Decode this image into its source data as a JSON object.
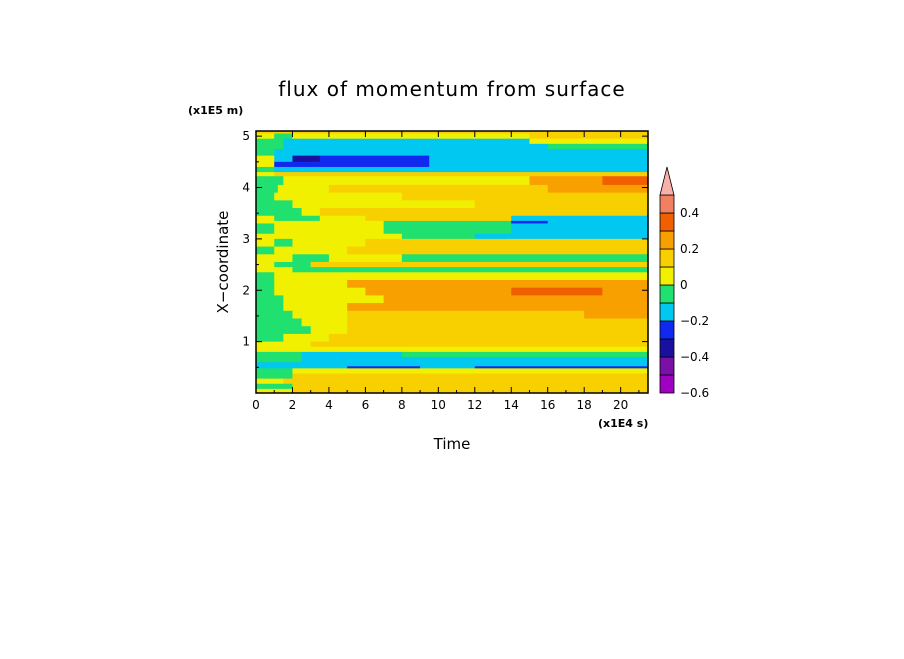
{
  "chart_data": {
    "type": "heatmap",
    "title": "flux of momentum from surface",
    "xlabel": "Time",
    "ylabel": "X−coordinate",
    "x_unit": "(x1E4 s)",
    "y_unit": "(x1E5 m)",
    "xlim": [
      0,
      21.5
    ],
    "ylim": [
      0,
      5.1
    ],
    "x_ticks": [
      0,
      2,
      4,
      6,
      8,
      10,
      12,
      14,
      16,
      18,
      20
    ],
    "x_tick_labels": [
      "0",
      "2",
      "4",
      "6",
      "8",
      "10",
      "12",
      "14",
      "16",
      "18",
      "20"
    ],
    "y_ticks": [
      1,
      2,
      3,
      4,
      5
    ],
    "y_tick_labels": [
      "1",
      "2",
      "3",
      "4",
      "5"
    ],
    "colorbar": {
      "levels": [
        -0.6,
        -0.5,
        -0.4,
        -0.3,
        -0.2,
        -0.1,
        0,
        0.1,
        0.2,
        0.3,
        0.4,
        0.5
      ],
      "colors": [
        "#a000c0",
        "#7a10a8",
        "#1a10a0",
        "#1028f0",
        "#00c8f0",
        "#20e070",
        "#f0f000",
        "#f8d000",
        "#f8a000",
        "#f06000",
        "#f08060",
        "#f8b0a8"
      ],
      "tick_values": [
        0.4,
        0.2,
        0,
        -0.2,
        -0.4,
        -0.6
      ],
      "tick_labels": [
        "0.4",
        "0.2",
        "0",
        "−0.2",
        "−0.4",
        "−0.6"
      ],
      "extend": "max"
    },
    "bands": [
      {
        "y0": 5.05,
        "y1": 5.1,
        "segs": [
          [
            0,
            1.2,
            0.1
          ],
          [
            1.2,
            21.5,
            0.15
          ]
        ]
      },
      {
        "y0": 4.95,
        "y1": 5.05,
        "segs": [
          [
            0,
            1,
            0.05
          ],
          [
            1,
            2,
            -0.05
          ],
          [
            2,
            15,
            0.05
          ],
          [
            15,
            21.5,
            0.15
          ]
        ]
      },
      {
        "y0": 4.85,
        "y1": 4.95,
        "segs": [
          [
            0,
            1.5,
            -0.05
          ],
          [
            1.5,
            15,
            -0.15
          ],
          [
            15,
            21.5,
            0.05
          ]
        ]
      },
      {
        "y0": 4.75,
        "y1": 4.85,
        "segs": [
          [
            0,
            1.5,
            -0.05
          ],
          [
            1.5,
            16,
            -0.15
          ],
          [
            16,
            21.5,
            -0.05
          ]
        ]
      },
      {
        "y0": 4.62,
        "y1": 4.75,
        "segs": [
          [
            0,
            1,
            -0.05
          ],
          [
            1,
            21.5,
            -0.15
          ]
        ]
      },
      {
        "y0": 4.5,
        "y1": 4.62,
        "segs": [
          [
            0,
            1,
            0.05
          ],
          [
            1,
            2,
            -0.15
          ],
          [
            2,
            3.5,
            -0.35
          ],
          [
            3.5,
            9.5,
            -0.25
          ],
          [
            9.5,
            21.5,
            -0.15
          ]
        ]
      },
      {
        "y0": 4.4,
        "y1": 4.5,
        "segs": [
          [
            0,
            1,
            0.05
          ],
          [
            1,
            9.5,
            -0.25
          ],
          [
            9.5,
            21.5,
            -0.15
          ]
        ]
      },
      {
        "y0": 4.3,
        "y1": 4.4,
        "segs": [
          [
            0,
            1,
            -0.05
          ],
          [
            1,
            21.5,
            -0.15
          ]
        ]
      },
      {
        "y0": 4.22,
        "y1": 4.3,
        "segs": [
          [
            0,
            1,
            0.05
          ],
          [
            1,
            21.5,
            0.15
          ]
        ]
      },
      {
        "y0": 4.05,
        "y1": 4.22,
        "segs": [
          [
            0,
            1.5,
            -0.05
          ],
          [
            1.5,
            15,
            0.05
          ],
          [
            15,
            19,
            0.25
          ],
          [
            19,
            21.5,
            0.35
          ]
        ]
      },
      {
        "y0": 3.9,
        "y1": 4.05,
        "segs": [
          [
            0,
            1.2,
            -0.05
          ],
          [
            1.2,
            4,
            0.05
          ],
          [
            4,
            16,
            0.15
          ],
          [
            16,
            21.5,
            0.25
          ]
        ]
      },
      {
        "y0": 3.75,
        "y1": 3.9,
        "segs": [
          [
            0,
            1,
            -0.05
          ],
          [
            1,
            3,
            0.05
          ],
          [
            3,
            8,
            0.05
          ],
          [
            8,
            21.5,
            0.15
          ]
        ]
      },
      {
        "y0": 3.6,
        "y1": 3.75,
        "segs": [
          [
            0,
            2,
            -0.05
          ],
          [
            2,
            12,
            0.05
          ],
          [
            12,
            21.5,
            0.15
          ]
        ]
      },
      {
        "y0": 3.45,
        "y1": 3.6,
        "segs": [
          [
            0,
            2.5,
            -0.05
          ],
          [
            2.5,
            3.5,
            0.05
          ],
          [
            3.5,
            21.5,
            0.15
          ]
        ]
      },
      {
        "y0": 3.35,
        "y1": 3.45,
        "segs": [
          [
            0,
            1,
            0.05
          ],
          [
            1,
            3.5,
            -0.05
          ],
          [
            3.5,
            6,
            0.05
          ],
          [
            6,
            14,
            0.15
          ],
          [
            14,
            21.5,
            -0.15
          ]
        ]
      },
      {
        "y0": 3.3,
        "y1": 3.35,
        "segs": [
          [
            0,
            7,
            0.05
          ],
          [
            7,
            14,
            -0.05
          ],
          [
            14,
            16,
            -0.25
          ],
          [
            16,
            21.5,
            -0.15
          ]
        ]
      },
      {
        "y0": 3.1,
        "y1": 3.3,
        "segs": [
          [
            0,
            1,
            -0.05
          ],
          [
            1,
            7,
            0.05
          ],
          [
            7,
            14,
            -0.05
          ],
          [
            14,
            21.5,
            -0.15
          ]
        ]
      },
      {
        "y0": 3.0,
        "y1": 3.1,
        "segs": [
          [
            0,
            8,
            0.05
          ],
          [
            8,
            12,
            -0.05
          ],
          [
            12,
            21.5,
            -0.15
          ]
        ]
      },
      {
        "y0": 2.85,
        "y1": 3.0,
        "segs": [
          [
            0,
            1,
            0.05
          ],
          [
            1,
            2,
            -0.05
          ],
          [
            2,
            6,
            0.05
          ],
          [
            6,
            21.5,
            0.15
          ]
        ]
      },
      {
        "y0": 2.7,
        "y1": 2.85,
        "segs": [
          [
            0,
            1,
            -0.05
          ],
          [
            1,
            5,
            0.05
          ],
          [
            5,
            21.5,
            0.15
          ]
        ]
      },
      {
        "y0": 2.55,
        "y1": 2.7,
        "segs": [
          [
            0,
            2,
            0.05
          ],
          [
            2,
            4,
            -0.05
          ],
          [
            4,
            8,
            0.05
          ],
          [
            8,
            21.5,
            -0.05
          ]
        ]
      },
      {
        "y0": 2.45,
        "y1": 2.55,
        "segs": [
          [
            0,
            1,
            0.05
          ],
          [
            1,
            3,
            -0.05
          ],
          [
            3,
            21.5,
            0.15
          ]
        ]
      },
      {
        "y0": 2.35,
        "y1": 2.45,
        "segs": [
          [
            0,
            2,
            0.05
          ],
          [
            2,
            21.5,
            -0.05
          ]
        ]
      },
      {
        "y0": 2.2,
        "y1": 2.35,
        "segs": [
          [
            0,
            1,
            -0.05
          ],
          [
            1,
            21.5,
            0.05
          ]
        ]
      },
      {
        "y0": 2.05,
        "y1": 2.2,
        "segs": [
          [
            0,
            1,
            -0.05
          ],
          [
            1,
            5,
            0.05
          ],
          [
            5,
            21.5,
            0.25
          ]
        ]
      },
      {
        "y0": 1.9,
        "y1": 2.05,
        "segs": [
          [
            0,
            1,
            -0.05
          ],
          [
            1,
            6,
            0.05
          ],
          [
            6,
            14,
            0.25
          ],
          [
            14,
            19,
            0.35
          ],
          [
            19,
            21.5,
            0.25
          ]
        ]
      },
      {
        "y0": 1.75,
        "y1": 1.9,
        "segs": [
          [
            0,
            1.5,
            -0.05
          ],
          [
            1.5,
            7,
            0.05
          ],
          [
            7,
            21.5,
            0.25
          ]
        ]
      },
      {
        "y0": 1.6,
        "y1": 1.75,
        "segs": [
          [
            0,
            1.5,
            -0.05
          ],
          [
            1.5,
            5,
            0.05
          ],
          [
            5,
            21.5,
            0.25
          ]
        ]
      },
      {
        "y0": 1.45,
        "y1": 1.6,
        "segs": [
          [
            0,
            2,
            -0.05
          ],
          [
            2,
            5,
            0.05
          ],
          [
            5,
            18,
            0.15
          ],
          [
            18,
            21.5,
            0.25
          ]
        ]
      },
      {
        "y0": 1.3,
        "y1": 1.45,
        "segs": [
          [
            0,
            2.5,
            -0.05
          ],
          [
            2.5,
            5,
            0.05
          ],
          [
            5,
            21.5,
            0.15
          ]
        ]
      },
      {
        "y0": 1.15,
        "y1": 1.3,
        "segs": [
          [
            0,
            3,
            -0.05
          ],
          [
            3,
            5,
            0.05
          ],
          [
            5,
            21.5,
            0.15
          ]
        ]
      },
      {
        "y0": 1.0,
        "y1": 1.15,
        "segs": [
          [
            0,
            1.5,
            -0.05
          ],
          [
            1.5,
            4,
            0.05
          ],
          [
            4,
            21.5,
            0.15
          ]
        ]
      },
      {
        "y0": 0.9,
        "y1": 1.0,
        "segs": [
          [
            0,
            3,
            0.05
          ],
          [
            3,
            21.5,
            0.15
          ]
        ]
      },
      {
        "y0": 0.8,
        "y1": 0.9,
        "segs": [
          [
            0,
            4,
            0.05
          ],
          [
            4,
            21.5,
            0.05
          ]
        ]
      },
      {
        "y0": 0.7,
        "y1": 0.8,
        "segs": [
          [
            0,
            2.5,
            -0.05
          ],
          [
            2.5,
            8,
            -0.15
          ],
          [
            8,
            21.5,
            -0.05
          ]
        ]
      },
      {
        "y0": 0.6,
        "y1": 0.7,
        "segs": [
          [
            0,
            2.5,
            -0.05
          ],
          [
            2.5,
            21.5,
            -0.15
          ]
        ]
      },
      {
        "y0": 0.52,
        "y1": 0.6,
        "segs": [
          [
            0,
            3,
            -0.15
          ],
          [
            3,
            21.5,
            -0.15
          ]
        ]
      },
      {
        "y0": 0.48,
        "y1": 0.52,
        "segs": [
          [
            0,
            5,
            -0.15
          ],
          [
            5,
            9,
            -0.25
          ],
          [
            9,
            12,
            -0.15
          ],
          [
            12,
            21.5,
            -0.25
          ]
        ]
      },
      {
        "y0": 0.38,
        "y1": 0.48,
        "segs": [
          [
            0,
            2,
            -0.05
          ],
          [
            2,
            21.5,
            0.05
          ]
        ]
      },
      {
        "y0": 0.28,
        "y1": 0.38,
        "segs": [
          [
            0,
            2,
            -0.05
          ],
          [
            2,
            21.5,
            0.15
          ]
        ]
      },
      {
        "y0": 0.18,
        "y1": 0.28,
        "segs": [
          [
            0,
            1.5,
            0.05
          ],
          [
            1.5,
            21.5,
            0.15
          ]
        ]
      },
      {
        "y0": 0.08,
        "y1": 0.18,
        "segs": [
          [
            0,
            2,
            -0.05
          ],
          [
            2,
            21.5,
            0.15
          ]
        ]
      },
      {
        "y0": 0.0,
        "y1": 0.08,
        "segs": [
          [
            0,
            2,
            0.05
          ],
          [
            2,
            21.5,
            0.15
          ]
        ]
      }
    ]
  }
}
